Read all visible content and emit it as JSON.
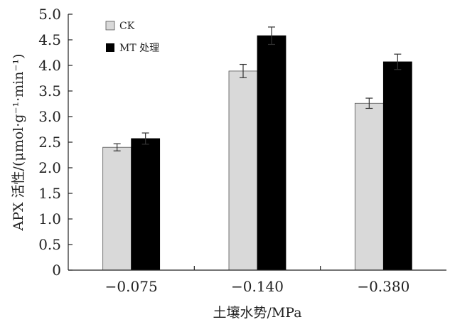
{
  "chart_data": {
    "type": "bar",
    "title": "",
    "xlabel": "土壤水势/MPa",
    "ylabel": "APX 活性/(μmol·g⁻¹·min⁻¹)",
    "categories": [
      "−0.075",
      "−0.140",
      "−0.380"
    ],
    "ylim": [
      0,
      5.0
    ],
    "yticks": [
      "0",
      "0.5",
      "1.0",
      "1.5",
      "2.0",
      "2.5",
      "3.0",
      "3.5",
      "4.0",
      "4.5",
      "5.0"
    ],
    "grid": false,
    "legend_position": "top-left",
    "series": [
      {
        "name": "CK",
        "color": "#d9d9d9",
        "values": [
          2.4,
          3.89,
          3.26
        ],
        "errors": [
          0.07,
          0.13,
          0.1
        ]
      },
      {
        "name": "MT 处理",
        "color": "#000000",
        "values": [
          2.57,
          4.58,
          4.07
        ],
        "errors": [
          0.11,
          0.17,
          0.15
        ]
      }
    ]
  }
}
